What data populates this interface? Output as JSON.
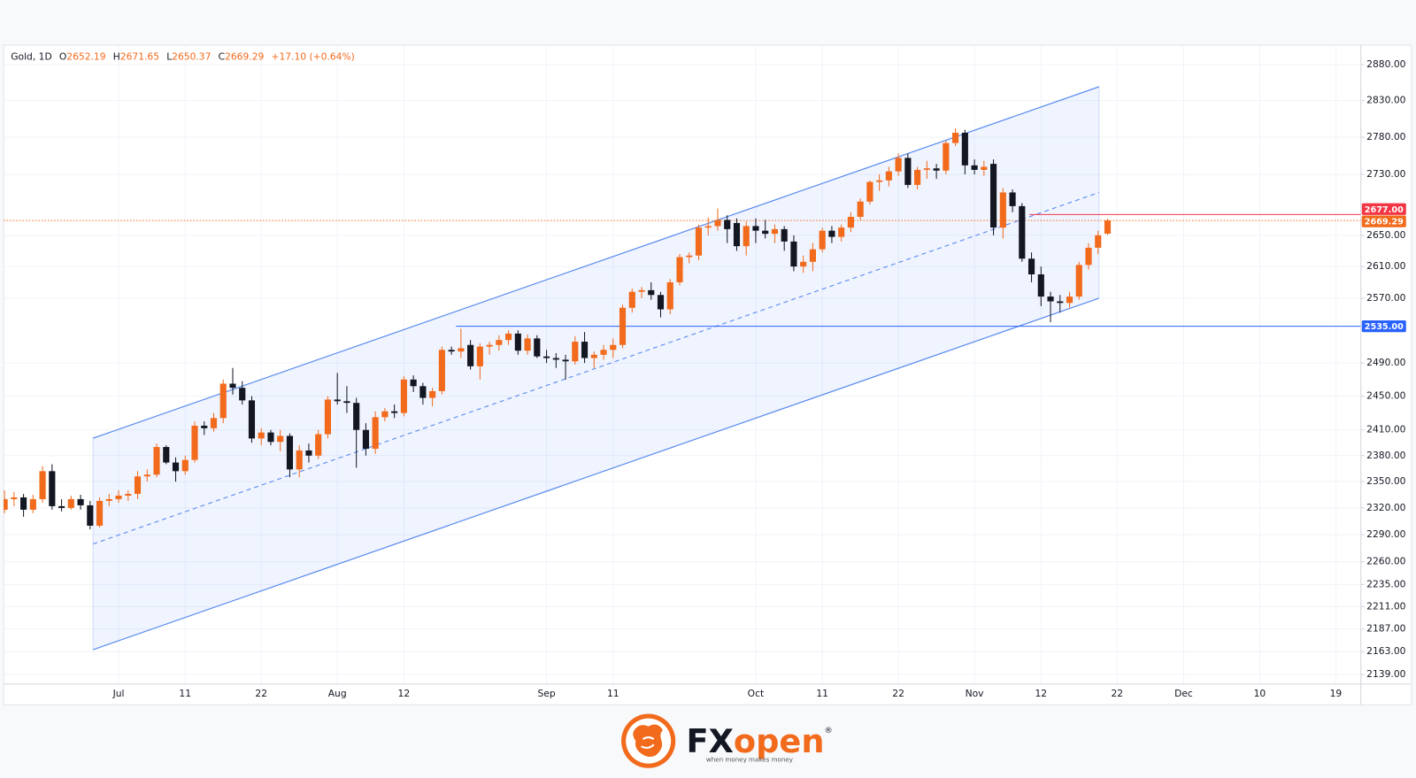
{
  "chart_data": {
    "type": "candlestick",
    "symbol": "Gold, 1D",
    "ohlc_keys": [
      "O",
      "H",
      "L",
      "C"
    ],
    "change": "+17.10 (+0.64%)",
    "log_scale": true,
    "grid": true,
    "up_color": "#f26a1b",
    "down_color": "#131722",
    "ylim": [
      2130,
      2905
    ],
    "yticks": [
      {
        "value": 2139,
        "label": "2139.00"
      },
      {
        "value": 2163,
        "label": "2163.00"
      },
      {
        "value": 2187,
        "label": "2187.00"
      },
      {
        "value": 2211,
        "label": "2211.00"
      },
      {
        "value": 2235,
        "label": "2235.00"
      },
      {
        "value": 2260,
        "label": "2260.00"
      },
      {
        "value": 2290,
        "label": "2290.00"
      },
      {
        "value": 2320,
        "label": "2320.00"
      },
      {
        "value": 2350,
        "label": "2350.00"
      },
      {
        "value": 2380,
        "label": "2380.00"
      },
      {
        "value": 2410,
        "label": "2410.00"
      },
      {
        "value": 2450,
        "label": "2450.00"
      },
      {
        "value": 2490,
        "label": "2490.00"
      },
      {
        "value": 2570,
        "label": "2570.00"
      },
      {
        "value": 2610,
        "label": "2610.00"
      },
      {
        "value": 2650,
        "label": "2650.00"
      },
      {
        "value": 2730,
        "label": "2730.00"
      },
      {
        "value": 2780,
        "label": "2780.00"
      },
      {
        "value": 2830,
        "label": "2830.00"
      },
      {
        "value": 2880,
        "label": "2880.00"
      }
    ],
    "levels": [
      {
        "value": 2535,
        "label": "2535.00",
        "color": "#2962ff",
        "dash": "solid"
      },
      {
        "value": 2677,
        "label": "2677.00",
        "color": "#f23645",
        "dash": "solid"
      },
      {
        "value": 2669.29,
        "label": "2669.29",
        "color": "#f26a1b",
        "dash": "dotted"
      }
    ],
    "categories": [
      null,
      null,
      null,
      null,
      null,
      null,
      null,
      null,
      null,
      null,
      null,
      null,
      "Jul",
      null,
      null,
      null,
      null,
      null,
      null,
      "11",
      null,
      null,
      null,
      null,
      null,
      null,
      null,
      "22",
      null,
      null,
      null,
      null,
      null,
      null,
      null,
      "Aug",
      null,
      null,
      null,
      null,
      null,
      null,
      "12",
      null,
      null,
      null,
      null,
      null,
      null,
      null,
      null,
      null,
      null,
      null,
      null,
      null,
      null,
      "Sep",
      null,
      null,
      null,
      null,
      null,
      null,
      "11",
      null,
      null,
      null,
      null,
      null,
      null,
      null,
      null,
      null,
      null,
      null,
      null,
      null,
      null,
      "Oct",
      null,
      null,
      null,
      null,
      null,
      null,
      "11",
      null,
      null,
      null,
      null,
      null,
      null,
      null,
      "22",
      null,
      null,
      null,
      null,
      null,
      null,
      null,
      "Nov",
      null,
      null,
      null,
      null,
      null,
      null,
      "12",
      null,
      null,
      null,
      null,
      null,
      null,
      null,
      "22",
      null,
      null,
      null,
      null,
      null,
      null,
      "Dec",
      null,
      null,
      null,
      null,
      null,
      null,
      null,
      "10",
      null,
      null,
      null,
      null,
      null,
      null,
      null,
      "19"
    ],
    "ohlc": [
      [
        2318,
        2340,
        2314,
        2330
      ],
      [
        2330,
        2338,
        2322,
        2332
      ],
      [
        2332,
        2336,
        2310,
        2318
      ],
      [
        2318,
        2335,
        2314,
        2330
      ],
      [
        2330,
        2368,
        2326,
        2362
      ],
      [
        2362,
        2370,
        2318,
        2322
      ],
      [
        2322,
        2330,
        2316,
        2320
      ],
      [
        2320,
        2334,
        2318,
        2330
      ],
      [
        2330,
        2335,
        2318,
        2323
      ],
      [
        2323,
        2328,
        2296,
        2300
      ],
      [
        2300,
        2332,
        2298,
        2328
      ],
      [
        2328,
        2336,
        2322,
        2330
      ],
      [
        2330,
        2340,
        2326,
        2334
      ],
      [
        2334,
        2340,
        2328,
        2336
      ],
      [
        2336,
        2362,
        2330,
        2356
      ],
      [
        2356,
        2364,
        2350,
        2358
      ],
      [
        2358,
        2394,
        2355,
        2390
      ],
      [
        2390,
        2392,
        2370,
        2372
      ],
      [
        2372,
        2378,
        2350,
        2362
      ],
      [
        2362,
        2380,
        2358,
        2375
      ],
      [
        2375,
        2420,
        2372,
        2415
      ],
      [
        2415,
        2420,
        2404,
        2412
      ],
      [
        2412,
        2430,
        2408,
        2424
      ],
      [
        2424,
        2470,
        2418,
        2465
      ],
      [
        2465,
        2484,
        2452,
        2460
      ],
      [
        2460,
        2468,
        2440,
        2445
      ],
      [
        2445,
        2450,
        2395,
        2400
      ],
      [
        2400,
        2412,
        2392,
        2407
      ],
      [
        2407,
        2410,
        2392,
        2396
      ],
      [
        2396,
        2410,
        2385,
        2403
      ],
      [
        2403,
        2406,
        2355,
        2364
      ],
      [
        2364,
        2392,
        2355,
        2386
      ],
      [
        2386,
        2394,
        2372,
        2380
      ],
      [
        2380,
        2410,
        2376,
        2405
      ],
      [
        2405,
        2450,
        2400,
        2446
      ],
      [
        2446,
        2478,
        2440,
        2444
      ],
      [
        2444,
        2462,
        2430,
        2442
      ],
      [
        2442,
        2448,
        2366,
        2410
      ],
      [
        2410,
        2418,
        2380,
        2388
      ],
      [
        2388,
        2432,
        2382,
        2425
      ],
      [
        2425,
        2436,
        2420,
        2432
      ],
      [
        2432,
        2440,
        2424,
        2430
      ],
      [
        2430,
        2474,
        2426,
        2470
      ],
      [
        2470,
        2475,
        2455,
        2462
      ],
      [
        2462,
        2466,
        2440,
        2448
      ],
      [
        2448,
        2460,
        2438,
        2456
      ],
      [
        2456,
        2510,
        2452,
        2506
      ],
      [
        2506,
        2510,
        2500,
        2504
      ],
      [
        2504,
        2532,
        2496,
        2508
      ],
      [
        2512,
        2518,
        2482,
        2486
      ],
      [
        2486,
        2514,
        2470,
        2510
      ],
      [
        2510,
        2516,
        2500,
        2512
      ],
      [
        2512,
        2524,
        2505,
        2518
      ],
      [
        2518,
        2530,
        2512,
        2526
      ],
      [
        2526,
        2530,
        2500,
        2505
      ],
      [
        2505,
        2525,
        2500,
        2520
      ],
      [
        2520,
        2524,
        2496,
        2498
      ],
      [
        2498,
        2506,
        2490,
        2496
      ],
      [
        2496,
        2502,
        2484,
        2494
      ],
      [
        2494,
        2500,
        2470,
        2492
      ],
      [
        2492,
        2523,
        2488,
        2516
      ],
      [
        2516,
        2528,
        2490,
        2496
      ],
      [
        2496,
        2504,
        2484,
        2500
      ],
      [
        2500,
        2512,
        2494,
        2506
      ],
      [
        2506,
        2520,
        2496,
        2512
      ],
      [
        2512,
        2562,
        2508,
        2558
      ],
      [
        2558,
        2582,
        2552,
        2578
      ],
      [
        2578,
        2584,
        2570,
        2580
      ],
      [
        2580,
        2590,
        2568,
        2574
      ],
      [
        2574,
        2578,
        2546,
        2556
      ],
      [
        2556,
        2594,
        2550,
        2590
      ],
      [
        2590,
        2626,
        2586,
        2622
      ],
      [
        2622,
        2628,
        2614,
        2624
      ],
      [
        2624,
        2664,
        2618,
        2660
      ],
      [
        2660,
        2673,
        2650,
        2662
      ],
      [
        2662,
        2685,
        2656,
        2670
      ],
      [
        2670,
        2676,
        2640,
        2658
      ],
      [
        2666,
        2672,
        2630,
        2636
      ],
      [
        2636,
        2668,
        2624,
        2662
      ],
      [
        2662,
        2672,
        2640,
        2656
      ],
      [
        2656,
        2670,
        2646,
        2652
      ],
      [
        2652,
        2664,
        2640,
        2658
      ],
      [
        2658,
        2662,
        2630,
        2642
      ],
      [
        2642,
        2650,
        2604,
        2610
      ],
      [
        2610,
        2624,
        2602,
        2616
      ],
      [
        2616,
        2640,
        2604,
        2632
      ],
      [
        2632,
        2660,
        2628,
        2656
      ],
      [
        2656,
        2662,
        2640,
        2648
      ],
      [
        2648,
        2664,
        2642,
        2660
      ],
      [
        2660,
        2680,
        2654,
        2674
      ],
      [
        2674,
        2698,
        2670,
        2694
      ],
      [
        2694,
        2722,
        2690,
        2720
      ],
      [
        2720,
        2730,
        2708,
        2722
      ],
      [
        2722,
        2740,
        2714,
        2734
      ],
      [
        2734,
        2758,
        2728,
        2752
      ],
      [
        2752,
        2758,
        2712,
        2716
      ],
      [
        2716,
        2740,
        2710,
        2736
      ],
      [
        2736,
        2748,
        2724,
        2738
      ],
      [
        2738,
        2744,
        2724,
        2735
      ],
      [
        2735,
        2775,
        2730,
        2772
      ],
      [
        2772,
        2792,
        2768,
        2786
      ],
      [
        2786,
        2790,
        2730,
        2742
      ],
      [
        2742,
        2750,
        2730,
        2736
      ],
      [
        2736,
        2748,
        2728,
        2740
      ],
      [
        2744,
        2750,
        2650,
        2660
      ],
      [
        2660,
        2712,
        2646,
        2706
      ],
      [
        2706,
        2710,
        2680,
        2688
      ],
      [
        2688,
        2692,
        2616,
        2620
      ],
      [
        2620,
        2628,
        2590,
        2600
      ],
      [
        2600,
        2610,
        2560,
        2572
      ],
      [
        2572,
        2578,
        2540,
        2566
      ],
      [
        2566,
        2574,
        2552,
        2564
      ],
      [
        2564,
        2578,
        2558,
        2572
      ],
      [
        2572,
        2616,
        2568,
        2612
      ],
      [
        2612,
        2640,
        2606,
        2634
      ],
      [
        2634,
        2656,
        2626,
        2650
      ],
      [
        2652.19,
        2671.65,
        2650.37,
        2669.29
      ],
      null,
      null,
      null,
      null,
      null,
      null,
      null,
      null,
      null,
      null,
      null,
      null,
      null,
      null,
      null,
      null,
      null,
      null,
      null,
      null,
      null,
      null,
      null,
      null
    ]
  },
  "footer": {
    "brand_fx": "FX",
    "brand_open": "open",
    "trademark": "®",
    "tagline": "when money makes money"
  }
}
